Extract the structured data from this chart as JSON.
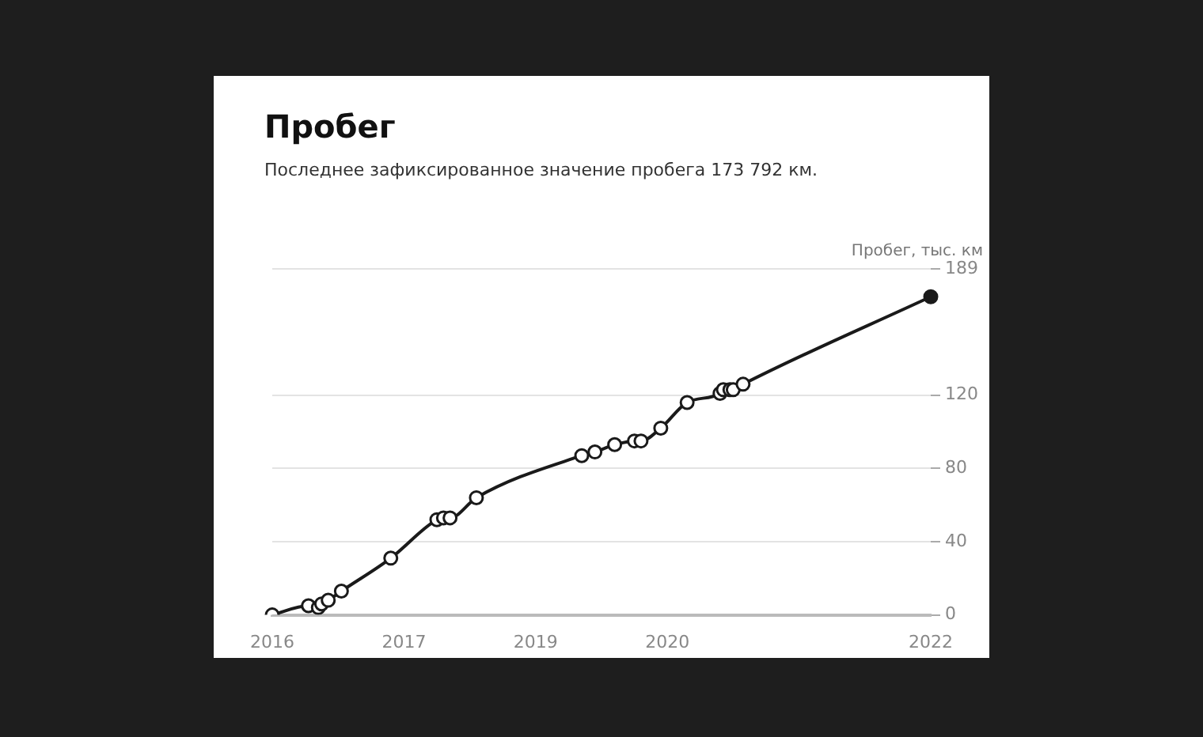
{
  "chart_data": {
    "type": "line",
    "title": "Пробег",
    "subtitle": "Последнее зафиксированное значение пробега 173 792 км.",
    "ylabel": "Пробег, тыс. км",
    "categories": [
      "2016",
      null,
      null,
      null,
      null,
      null,
      null,
      null,
      null,
      null,
      null,
      null,
      null,
      null,
      null,
      null,
      null,
      null,
      null,
      null,
      null,
      null,
      null,
      null,
      null,
      null,
      null,
      null,
      null,
      null,
      null,
      null,
      null,
      null,
      null,
      null,
      null,
      null,
      null,
      null,
      "2017",
      null,
      null,
      null,
      null,
      null,
      null,
      null,
      null,
      null,
      null,
      null,
      null,
      null,
      null,
      null,
      null,
      null,
      null,
      null,
      null,
      null,
      null,
      null,
      null,
      null,
      null,
      null,
      null,
      null,
      null,
      null,
      null,
      null,
      null,
      null,
      null,
      null,
      null,
      null,
      "2019",
      null,
      null,
      null,
      null,
      null,
      null,
      null,
      null,
      null,
      null,
      null,
      null,
      null,
      null,
      null,
      null,
      null,
      null,
      null,
      null,
      null,
      null,
      null,
      null,
      null,
      null,
      null,
      null,
      null,
      null,
      null,
      null,
      null,
      null,
      null,
      null,
      null,
      null,
      null,
      "2020",
      null,
      null,
      null,
      null,
      null,
      null,
      null,
      null,
      null,
      null,
      null,
      null,
      null,
      null,
      null,
      null,
      null,
      null,
      null,
      null,
      null,
      null,
      null,
      null,
      null,
      null,
      null,
      null,
      null,
      null,
      null,
      null,
      null,
      null,
      null,
      null,
      null,
      null,
      null,
      null,
      null,
      null,
      null,
      null,
      null,
      null,
      null,
      null,
      null,
      null,
      null,
      null,
      null,
      null,
      null,
      null,
      null,
      null,
      null,
      null,
      null,
      null,
      null,
      null,
      null,
      null,
      null,
      null,
      null,
      null,
      null,
      null,
      null,
      null,
      null,
      null,
      null,
      null,
      null,
      "2022"
    ],
    "series": [
      {
        "color": "#1a1a1a",
        "colors": [
          "#ffffff",
          "#ffffff",
          "#ffffff",
          "#ffffff",
          "#ffffff",
          "#ffffff",
          "#ffffff",
          "#ffffff",
          "#ffffff",
          "#ffffff",
          "#ffffff",
          "#ffffff",
          "#ffffff",
          "#ffffff",
          "#ffffff",
          "#ffffff",
          "#ffffff",
          "#ffffff",
          "#ffffff",
          "#ffffff",
          "#ffffff",
          "#ffffff",
          "#ffffff",
          "#ffffff",
          "#ffffff",
          "#ffffff",
          "#ffffff",
          "#ffffff",
          "#ffffff",
          "#ffffff",
          "#ffffff",
          "#ffffff",
          "#ffffff",
          "#ffffff",
          "#ffffff",
          "#ffffff",
          "#ffffff",
          "#ffffff",
          "#ffffff",
          "#ffffff",
          "#ffffff",
          "#ffffff",
          "#ffffff",
          "#ffffff",
          "#ffffff",
          "#ffffff",
          "#ffffff",
          "#ffffff",
          "#ffffff",
          "#ffffff",
          "#ffffff",
          "#ffffff",
          "#ffffff",
          "#ffffff",
          "#ffffff",
          "#ffffff",
          "#ffffff",
          "#ffffff",
          "#ffffff",
          "#ffffff",
          "#ffffff",
          "#ffffff",
          "#ffffff",
          "#ffffff",
          "#ffffff",
          "#ffffff",
          "#ffffff",
          "#ffffff",
          "#ffffff",
          "#ffffff",
          "#ffffff",
          "#ffffff",
          "#ffffff",
          "#ffffff",
          "#ffffff",
          "#ffffff",
          "#ffffff",
          "#ffffff",
          "#ffffff",
          "#ffffff",
          "#ffffff",
          "#ffffff",
          "#ffffff",
          "#ffffff",
          "#ffffff",
          "#ffffff",
          "#ffffff",
          "#ffffff",
          "#ffffff",
          "#ffffff",
          "#ffffff",
          "#ffffff",
          "#ffffff",
          "#ffffff",
          "#ffffff",
          "#ffffff",
          "#ffffff",
          "#ffffff",
          "#ffffff",
          "#ffffff",
          "#ffffff",
          "#ffffff",
          "#ffffff",
          "#ffffff",
          "#ffffff",
          "#ffffff",
          "#ffffff",
          "#ffffff",
          "#ffffff",
          "#ffffff",
          "#ffffff",
          "#ffffff",
          "#ffffff",
          "#ffffff",
          "#ffffff",
          "#ffffff",
          "#ffffff",
          "#ffffff",
          "#ffffff",
          "#ffffff",
          "#ffffff",
          "#ffffff",
          "#ffffff",
          "#ffffff",
          "#ffffff",
          "#ffffff",
          "#ffffff",
          "#ffffff",
          "#ffffff",
          "#ffffff",
          "#ffffff",
          "#ffffff",
          "#ffffff",
          "#ffffff",
          "#ffffff",
          "#ffffff",
          "#ffffff",
          "#ffffff",
          "#ffffff",
          "#ffffff",
          "#ffffff",
          "#ffffff",
          "#ffffff",
          "#ffffff",
          "#ffffff",
          "#ffffff",
          "#ffffff",
          "#ffffff",
          "#ffffff",
          "#ffffff",
          "#ffffff",
          "#ffffff",
          "#ffffff",
          "#ffffff",
          "#ffffff",
          "#ffffff",
          "#ffffff",
          "#ffffff",
          "#ffffff",
          "#ffffff",
          "#ffffff",
          "#ffffff",
          "#ffffff",
          "#ffffff",
          "#ffffff",
          "#ffffff",
          "#ffffff",
          "#ffffff",
          "#ffffff",
          "#ffffff",
          "#ffffff",
          "#ffffff",
          "#ffffff",
          "#ffffff",
          "#ffffff",
          "#ffffff",
          "#ffffff",
          "#ffffff",
          "#ffffff",
          "#ffffff",
          "#ffffff",
          "#ffffff",
          "#ffffff",
          "#ffffff",
          "#ffffff",
          "#ffffff",
          "#ffffff",
          "#ffffff",
          "#ffffff",
          "#ffffff",
          "#ffffff",
          "#ffffff",
          "#ffffff",
          "#ffffff",
          "#ffffff",
          "#ffffff",
          "#ffffff",
          "#ffffff",
          "#ffffff",
          "#ffffff",
          "#1a1a1a"
        ],
        "values": [
          0,
          null,
          null,
          null,
          null,
          null,
          null,
          null,
          null,
          null,
          null,
          5,
          null,
          null,
          4,
          6,
          null,
          8,
          null,
          null,
          null,
          13,
          null,
          null,
          null,
          null,
          null,
          null,
          null,
          null,
          null,
          null,
          null,
          null,
          null,
          null,
          31,
          null,
          null,
          null,
          null,
          null,
          null,
          null,
          null,
          null,
          null,
          null,
          null,
          null,
          52,
          null,
          53,
          null,
          53,
          null,
          null,
          null,
          null,
          null,
          null,
          null,
          64,
          null,
          null,
          null,
          null,
          null,
          null,
          null,
          null,
          null,
          null,
          null,
          null,
          null,
          null,
          null,
          null,
          null,
          null,
          null,
          null,
          null,
          null,
          null,
          null,
          null,
          null,
          null,
          null,
          null,
          null,
          null,
          87,
          null,
          null,
          null,
          89,
          null,
          null,
          null,
          null,
          null,
          93,
          null,
          null,
          null,
          null,
          null,
          95,
          null,
          95,
          null,
          null,
          null,
          null,
          null,
          102,
          null,
          null,
          null,
          null,
          null,
          null,
          null,
          116,
          null,
          null,
          null,
          null,
          null,
          null,
          null,
          null,
          null,
          121,
          123,
          null,
          123,
          123,
          null,
          null,
          126,
          null,
          null,
          null,
          null,
          null,
          null,
          null,
          null,
          null,
          null,
          null,
          null,
          null,
          null,
          null,
          null,
          null,
          null,
          null,
          null,
          null,
          null,
          null,
          null,
          null,
          null,
          null,
          null,
          null,
          null,
          null,
          null,
          null,
          null,
          null,
          null,
          null,
          null,
          null,
          null,
          null,
          null,
          null,
          null,
          null,
          null,
          null,
          null,
          null,
          null,
          null,
          null,
          null,
          null,
          null,
          null,
          173.792
        ]
      }
    ],
    "ylim": [
      0,
      189
    ],
    "yticks": [
      0,
      40,
      80,
      120,
      189
    ],
    "grid": "y",
    "marker": "circle",
    "line_style": "solid"
  }
}
